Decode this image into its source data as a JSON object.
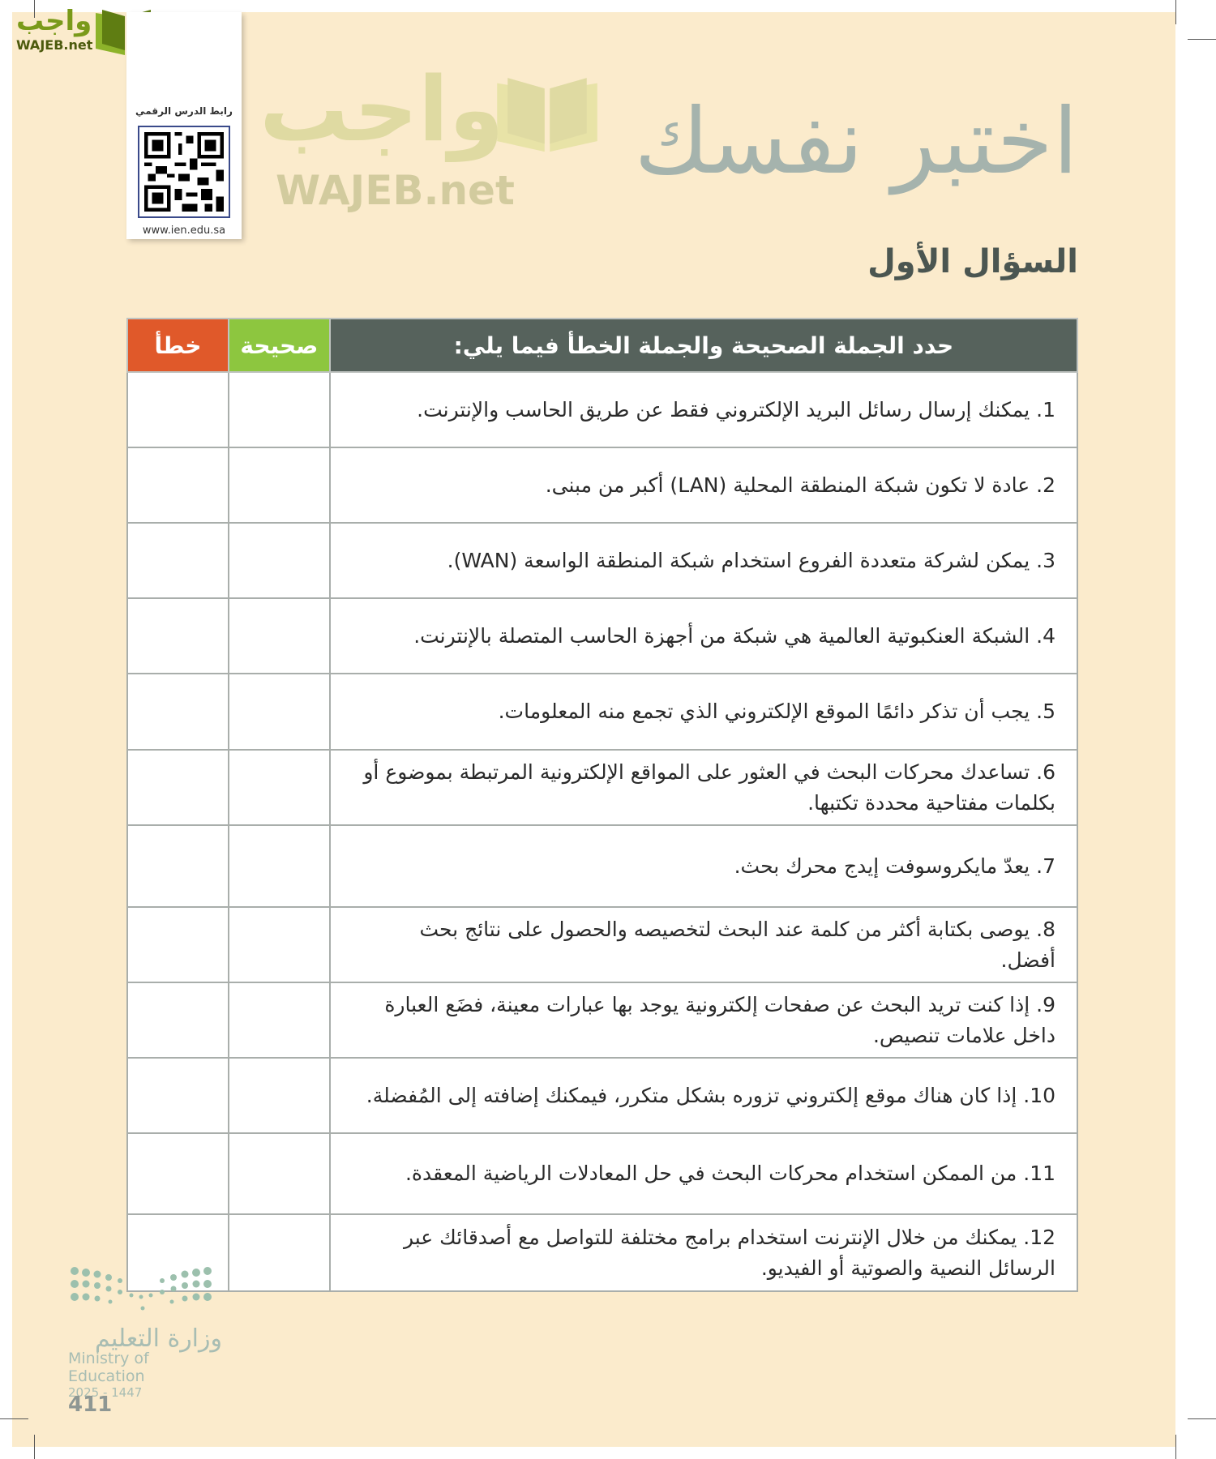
{
  "watermark": {
    "arabic": "واجب",
    "latin": "WAJEB.net"
  },
  "qr_card": {
    "label": "رابط الدرس الرقمي",
    "url": "www.ien.edu.sa"
  },
  "title": "اختبر نفسك",
  "subtitle": "السؤال الأول",
  "table": {
    "headers": {
      "question": "حدد الجملة الصحيحة والجملة الخطأ فيما يلي:",
      "true": "صحيحة",
      "false": "خطأ"
    },
    "header_colors": {
      "question": "#56625c",
      "true": "#8dc63f",
      "false": "#e0592a"
    },
    "rows": [
      {
        "text": "1. يمكنك إرسال رسائل البريد الإلكتروني فقط عن طريق الحاسب والإنترنت."
      },
      {
        "text": "2. عادة لا تكون شبكة المنطقة المحلية (LAN) أكبر من مبنى."
      },
      {
        "text": "3. يمكن لشركة متعددة الفروع استخدام شبكة المنطقة الواسعة (WAN)."
      },
      {
        "text": "4. الشبكة العنكبوتية العالمية هي شبكة من أجهزة الحاسب المتصلة بالإنترنت."
      },
      {
        "text": "5. يجب أن تذكر دائمًا الموقع الإلكتروني الذي تجمع منه المعلومات."
      },
      {
        "text": "6. تساعدك محركات البحث في العثور على المواقع الإلكترونية المرتبطة بموضوع أو بكلمات مفتاحية محددة تكتبها."
      },
      {
        "text": "7. يعدّ مايكروسوفت إيدج محرك بحث."
      },
      {
        "text": "8. يوصى بكتابة أكثر من كلمة عند البحث لتخصيصه والحصول على نتائج بحث أفضل."
      },
      {
        "text": "9. إذا كنت تريد البحث عن صفحات إلكترونية يوجد بها عبارات معينة، فضَع العبارة داخل علامات تنصيص."
      },
      {
        "text": "10. إذا كان هناك موقع إلكتروني تزوره بشكل متكرر، فيمكنك إضافته إلى المُفضلة."
      },
      {
        "text": "11. من الممكن استخدام محركات البحث في حل المعادلات الرياضية المعقدة."
      },
      {
        "text": "12. يمكنك من خلال الإنترنت استخدام برامج مختلفة للتواصل مع أصدقائك عبر الرسائل النصية والصوتية أو الفيديو."
      }
    ]
  },
  "footer": {
    "ministry_ar": "وزارة التعليم",
    "ministry_en": "Ministry of Education",
    "year": "2025 - 1447",
    "page_number": "411"
  }
}
